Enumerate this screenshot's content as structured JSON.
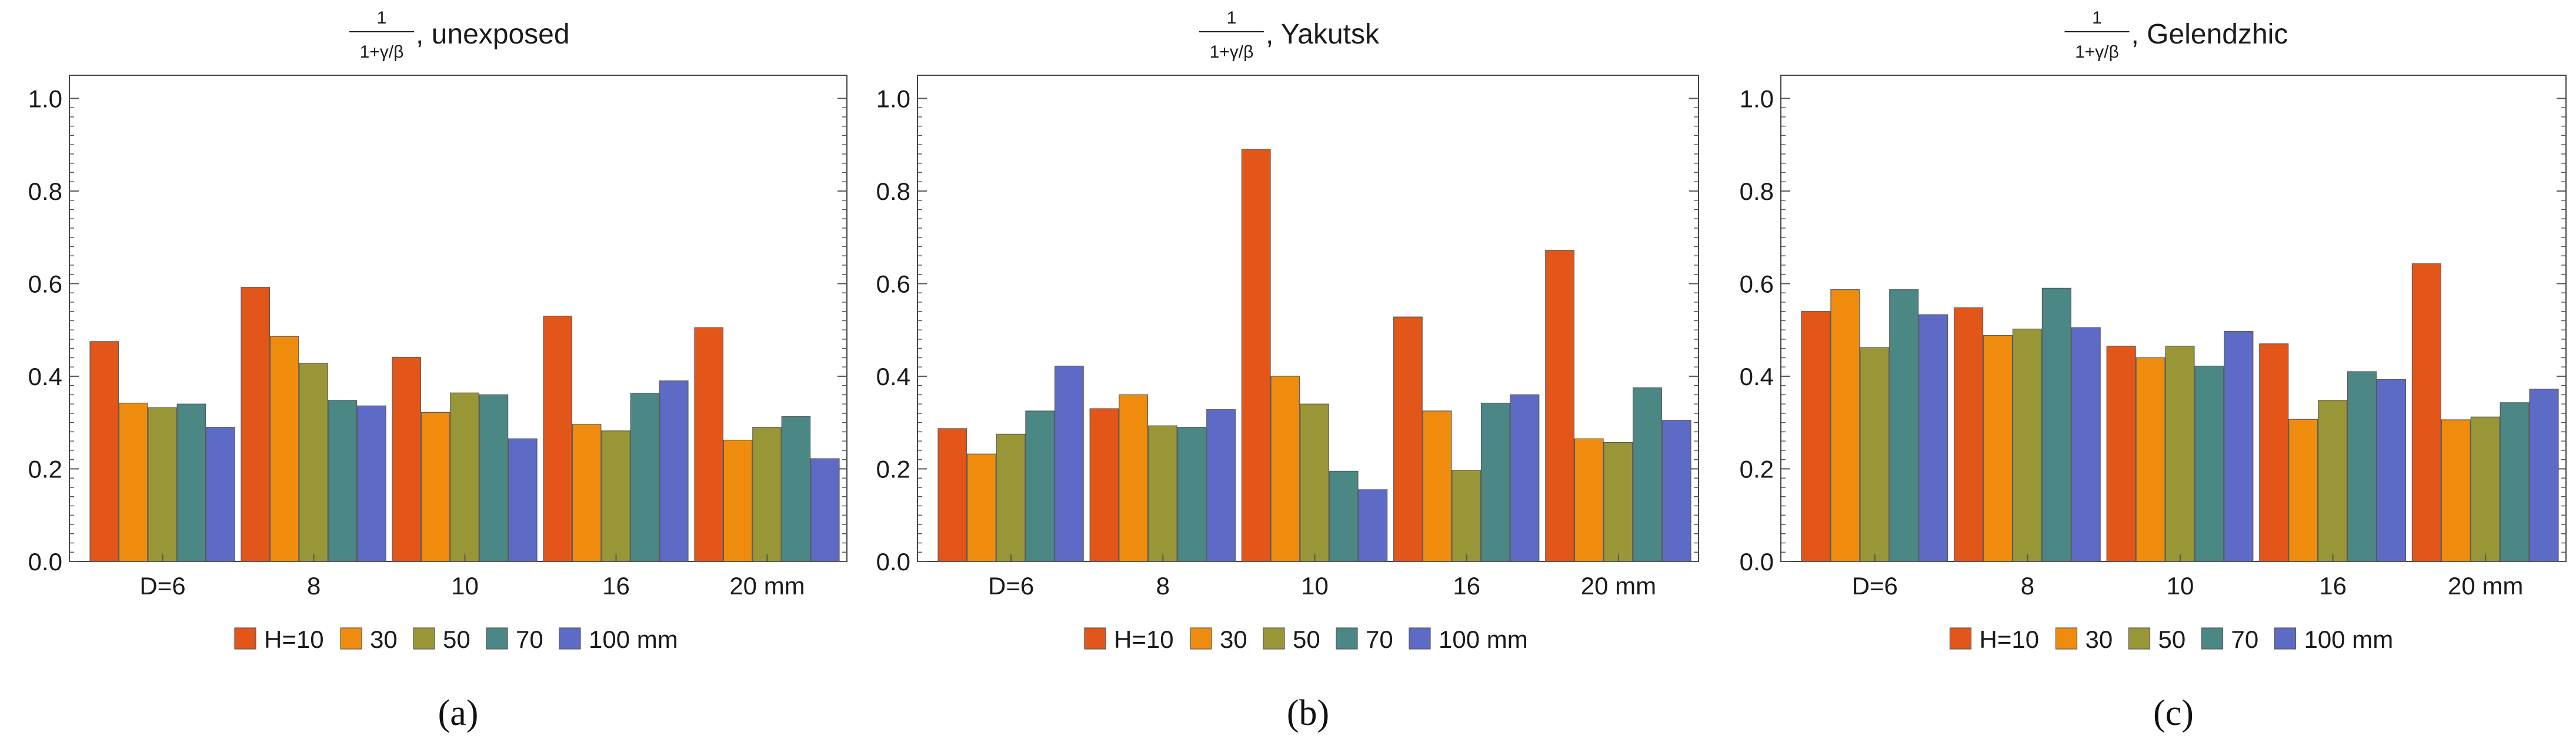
{
  "chart_data": [
    {
      "panel": "a",
      "type": "bar",
      "title": {
        "frac_num": "1",
        "frac_den": "1+γ/β",
        "rest": ", unexposed"
      },
      "categories": [
        "D=6",
        "8",
        "10",
        "16",
        "20 mm"
      ],
      "legend": [
        "H=10",
        "30",
        "50",
        "70",
        "100 mm"
      ],
      "series": [
        {
          "name": "H=10",
          "values": [
            0.475,
            0.592,
            0.441,
            0.53,
            0.505
          ]
        },
        {
          "name": "30",
          "values": [
            0.342,
            0.486,
            0.322,
            0.296,
            0.262
          ]
        },
        {
          "name": "50",
          "values": [
            0.332,
            0.428,
            0.364,
            0.282,
            0.29
          ]
        },
        {
          "name": "70",
          "values": [
            0.34,
            0.348,
            0.36,
            0.363,
            0.313
          ]
        },
        {
          "name": "100 mm",
          "values": [
            0.29,
            0.336,
            0.265,
            0.39,
            0.222
          ]
        }
      ],
      "yticks": [
        "0.0",
        "0.2",
        "0.4",
        "0.6",
        "0.8",
        "1.0"
      ],
      "ylim": [
        0,
        1.05
      ],
      "label": "(a)"
    },
    {
      "panel": "b",
      "type": "bar",
      "title": {
        "frac_num": "1",
        "frac_den": "1+γ/β",
        "rest": " , Yakutsk"
      },
      "categories": [
        "D=6",
        "8",
        "10",
        "16",
        "20 mm"
      ],
      "legend": [
        "H=10",
        "30",
        "50",
        "70",
        "100 mm"
      ],
      "series": [
        {
          "name": "H=10",
          "values": [
            0.287,
            0.33,
            0.89,
            0.528,
            0.672
          ]
        },
        {
          "name": "30",
          "values": [
            0.232,
            0.36,
            0.4,
            0.325,
            0.265
          ]
        },
        {
          "name": "50",
          "values": [
            0.275,
            0.293,
            0.34,
            0.197,
            0.257
          ]
        },
        {
          "name": "70",
          "values": [
            0.325,
            0.29,
            0.195,
            0.342,
            0.375
          ]
        },
        {
          "name": "100 mm",
          "values": [
            0.422,
            0.328,
            0.155,
            0.36,
            0.305
          ]
        }
      ],
      "yticks": [
        "0.0",
        "0.2",
        "0.4",
        "0.6",
        "0.8",
        "1.0"
      ],
      "ylim": [
        0,
        1.05
      ],
      "label": "(b)"
    },
    {
      "panel": "c",
      "type": "bar",
      "title": {
        "frac_num": "1",
        "frac_den": "1+γ/β",
        "rest": ", Gelendzhic"
      },
      "categories": [
        "D=6",
        "8",
        "10",
        "16",
        "20 mm"
      ],
      "legend": [
        "H=10",
        "30",
        "50",
        "70",
        "100 mm"
      ],
      "series": [
        {
          "name": "H=10",
          "values": [
            0.54,
            0.548,
            0.465,
            0.47,
            0.643
          ]
        },
        {
          "name": "30",
          "values": [
            0.587,
            0.488,
            0.44,
            0.307,
            0.306
          ]
        },
        {
          "name": "50",
          "values": [
            0.462,
            0.502,
            0.465,
            0.348,
            0.312
          ]
        },
        {
          "name": "70",
          "values": [
            0.587,
            0.59,
            0.422,
            0.41,
            0.343
          ]
        },
        {
          "name": "100 mm",
          "values": [
            0.533,
            0.505,
            0.497,
            0.393,
            0.372
          ]
        }
      ],
      "yticks": [
        "0.0",
        "0.2",
        "0.4",
        "0.6",
        "0.8",
        "1.0"
      ],
      "ylim": [
        0,
        1.05
      ],
      "label": "(c)"
    }
  ],
  "colors": {
    "series": [
      "#e2561a",
      "#ef8c0e",
      "#999638",
      "#4b8784",
      "#5d6bc7"
    ],
    "bar_stroke": "#5a5a5a",
    "axis": "#444444",
    "tick": "#555555",
    "text": "#1a1a1a"
  }
}
